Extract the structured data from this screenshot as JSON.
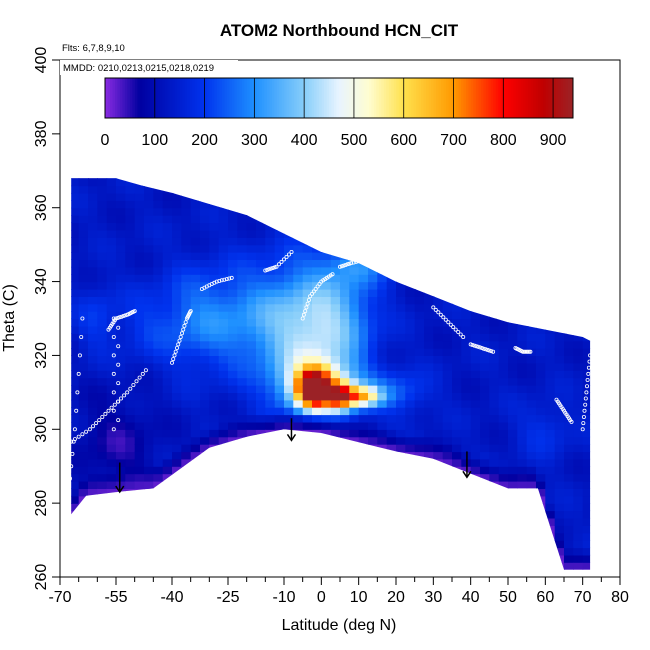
{
  "chart_data": {
    "type": "heatmap",
    "title": "ATOM2 Northbound HCN_CIT",
    "annotations": [
      "Flts: 6,7,8,9,10",
      "MMDD: 0210,0213,0215,0218,0219"
    ],
    "xlabel": "Latitude (deg N)",
    "ylabel": "Theta (C)",
    "xlim": [
      -70,
      80
    ],
    "ylim": [
      260,
      400
    ],
    "x_major_ticks": [
      -70,
      -55,
      -40,
      -25,
      -10,
      0,
      10,
      20,
      30,
      40,
      50,
      60,
      70,
      80
    ],
    "x_minor_ticks": [
      -65,
      -60,
      -50,
      -45,
      -35,
      -30,
      -20,
      -15,
      -5,
      5,
      15,
      25,
      35,
      45,
      55,
      65,
      75
    ],
    "y_ticks": [
      260,
      280,
      300,
      320,
      340,
      360,
      380,
      400
    ],
    "colorbar": {
      "range": [
        0,
        940
      ],
      "ticks": [
        0,
        100,
        200,
        300,
        400,
        500,
        600,
        700,
        800,
        900
      ],
      "stops": [
        {
          "value": 0,
          "color": "#8a2be2"
        },
        {
          "value": 70,
          "color": "#0000a0"
        },
        {
          "value": 200,
          "color": "#0033ee"
        },
        {
          "value": 300,
          "color": "#1e90ff"
        },
        {
          "value": 400,
          "color": "#87cefa"
        },
        {
          "value": 470,
          "color": "#e8f4ff"
        },
        {
          "value": 530,
          "color": "#fffdd0"
        },
        {
          "value": 600,
          "color": "#ffe14d"
        },
        {
          "value": 700,
          "color": "#ff9900"
        },
        {
          "value": 800,
          "color": "#ff0000"
        },
        {
          "value": 880,
          "color": "#c00000"
        },
        {
          "value": 940,
          "color": "#9b2226"
        }
      ]
    },
    "domain_top": [
      [
        -67,
        368
      ],
      [
        -55,
        368
      ],
      [
        -48,
        366
      ],
      [
        -40,
        364
      ],
      [
        -30,
        361
      ],
      [
        -20,
        358
      ],
      [
        -10,
        353
      ],
      [
        0,
        348
      ],
      [
        10,
        345
      ],
      [
        20,
        340
      ],
      [
        30,
        336
      ],
      [
        40,
        332
      ],
      [
        50,
        329
      ],
      [
        60,
        327
      ],
      [
        70,
        325
      ],
      [
        72,
        324
      ]
    ],
    "domain_bottom": [
      [
        72,
        262
      ],
      [
        65,
        262
      ],
      [
        58,
        284
      ],
      [
        50,
        284
      ],
      [
        40,
        288
      ],
      [
        30,
        292
      ],
      [
        20,
        294
      ],
      [
        0,
        299
      ],
      [
        -10,
        300
      ],
      [
        -20,
        298
      ],
      [
        -30,
        295
      ],
      [
        -45,
        284
      ],
      [
        -55,
        283
      ],
      [
        -63,
        282
      ],
      [
        -67,
        277
      ]
    ],
    "background_value": 130,
    "features": [
      {
        "x": -60,
        "y": 330,
        "value": 200,
        "sx": 4,
        "sy": 6
      },
      {
        "x": -48,
        "y": 328,
        "value": 180,
        "sx": 5,
        "sy": 7
      },
      {
        "x": -35,
        "y": 330,
        "value": 230,
        "sx": 7,
        "sy": 9
      },
      {
        "x": -20,
        "y": 330,
        "value": 270,
        "sx": 10,
        "sy": 10
      },
      {
        "x": -5,
        "y": 325,
        "value": 340,
        "sx": 8,
        "sy": 14
      },
      {
        "x": 5,
        "y": 330,
        "value": 300,
        "sx": 7,
        "sy": 10
      },
      {
        "x": 10,
        "y": 345,
        "value": 250,
        "sx": 6,
        "sy": 4
      },
      {
        "x": 0,
        "y": 312,
        "value": 450,
        "sx": 7,
        "sy": 5
      },
      {
        "x": -2,
        "y": 311,
        "value": 780,
        "sx": 3,
        "sy": 3.5
      },
      {
        "x": 5,
        "y": 309,
        "value": 600,
        "sx": 2.5,
        "sy": 2.5
      },
      {
        "x": 11,
        "y": 309,
        "value": 520,
        "sx": 3.5,
        "sy": 2
      },
      {
        "x": 20,
        "y": 310,
        "value": 240,
        "sx": 6,
        "sy": 4
      },
      {
        "x": 60,
        "y": 300,
        "value": 190,
        "sx": 5,
        "sy": 5
      },
      {
        "x": -55,
        "y": 295,
        "value": 60,
        "sx": 8,
        "sy": 10
      }
    ],
    "low_band": {
      "value": 20,
      "thickness": 6
    },
    "arrows": [
      {
        "x": -54,
        "y_from": 291,
        "y_to": 283
      },
      {
        "x": -8,
        "y_from": 303,
        "y_to": 297
      },
      {
        "x": 39,
        "y_from": 294,
        "y_to": 287
      }
    ],
    "flight_tracks": [
      {
        "x": [
          -68,
          -62,
          -57,
          -52,
          -47
        ],
        "y": [
          296,
          300,
          305,
          310,
          316
        ]
      },
      {
        "x": -55,
        "y_from": 300,
        "y_to": 330
      },
      {
        "x": [
          -57,
          -55,
          -52,
          -50
        ],
        "y": [
          327,
          330,
          331,
          332
        ]
      },
      {
        "x": [
          -40,
          -38,
          -36,
          -35
        ],
        "y": [
          318,
          324,
          330,
          332
        ]
      },
      {
        "x": [
          -32,
          -28,
          -24
        ],
        "y": [
          338,
          340,
          341
        ]
      },
      {
        "x": [
          -15,
          -12,
          -8
        ],
        "y": [
          343,
          344,
          348
        ]
      },
      {
        "x": [
          -5,
          -3,
          0,
          3
        ],
        "y": [
          330,
          336,
          340,
          342
        ]
      },
      {
        "x": [
          5,
          8,
          12
        ],
        "y": [
          344,
          345,
          346
        ]
      },
      {
        "x": [
          15,
          18,
          20
        ],
        "y": [
          344,
          344,
          343
        ]
      },
      {
        "x": [
          30,
          34,
          38
        ],
        "y": [
          333,
          329,
          325
        ]
      },
      {
        "x": [
          40,
          43,
          46
        ],
        "y": [
          323,
          322,
          321
        ]
      },
      {
        "x": [
          52,
          54,
          56
        ],
        "y": [
          322,
          321,
          321
        ]
      },
      {
        "x": [
          63,
          65,
          67
        ],
        "y": [
          308,
          305,
          302
        ]
      },
      {
        "x": [
          -68,
          -66,
          -64
        ],
        "y": [
          280,
          300,
          330
        ]
      },
      {
        "x": [
          70,
          71,
          72
        ],
        "y": [
          300,
          310,
          320
        ]
      }
    ]
  }
}
